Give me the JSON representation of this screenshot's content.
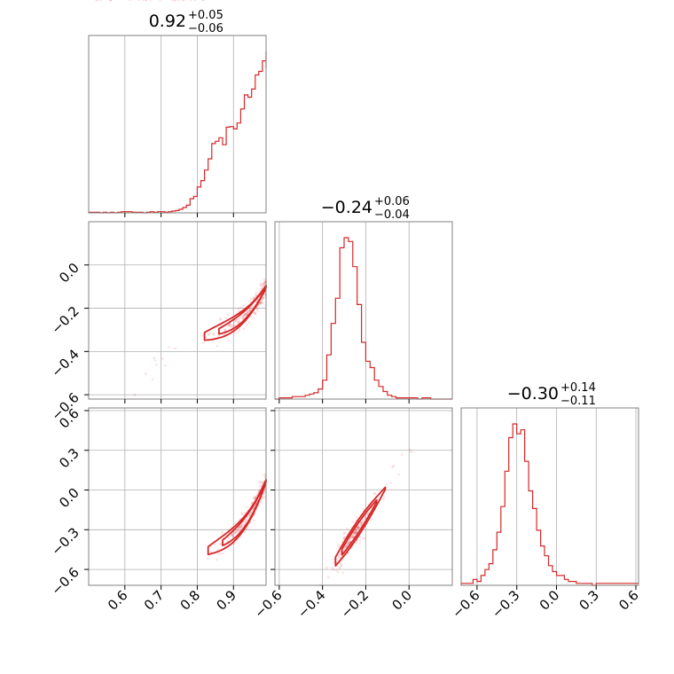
{
  "colors": {
    "series": "#d62728",
    "grid": "#b0b0b0",
    "frame": "#808080"
  },
  "chart_data": {
    "type": "corner",
    "parameters": [
      {
        "median": "0.92",
        "upper": "+0.05",
        "lower": "−0.06"
      },
      {
        "median": "−0.24",
        "upper": "+0.06",
        "lower": "−0.04"
      },
      {
        "median": "−0.30",
        "upper": "+0.14",
        "lower": "−0.11"
      }
    ],
    "ranges": [
      [
        0.5,
        0.99
      ],
      [
        -0.62,
        0.2
      ],
      [
        -0.72,
        0.62
      ]
    ],
    "ticks": [
      {
        "values": [
          0.6,
          0.7,
          0.8,
          0.9
        ],
        "labels": [
          "0.6",
          "0.7",
          "0.8",
          "0.9"
        ]
      },
      {
        "values": [
          -0.6,
          -0.4,
          -0.2,
          0.0
        ],
        "labels": [
          "−0.6",
          "−0.4",
          "−0.2",
          "0.0"
        ]
      },
      {
        "values": [
          -0.6,
          -0.3,
          0.0,
          0.3,
          0.6
        ],
        "labels": [
          "−0.6",
          "−0.3",
          "0.0",
          "0.3",
          "0.6"
        ]
      }
    ],
    "grid": true,
    "histograms": [
      {
        "parameter": 0,
        "bin_start": 0.5,
        "bin_width": 0.01,
        "counts": [
          1,
          1,
          1,
          0,
          1,
          0,
          1,
          0,
          1,
          2,
          2,
          2,
          1,
          1,
          1,
          0,
          1,
          2,
          1,
          2,
          2,
          1,
          2,
          3,
          4,
          6,
          9,
          13,
          24,
          28,
          44,
          55,
          73,
          92,
          118,
          122,
          128,
          116,
          146,
          147,
          143,
          153,
          177,
          201,
          197,
          211,
          235,
          241,
          259,
          275,
          247
        ]
      },
      {
        "parameter": 1,
        "bin_start": -0.62,
        "bin_width": 0.02,
        "counts": [
          0,
          1,
          1,
          1,
          2,
          2,
          2,
          3,
          4,
          5,
          8,
          15,
          35,
          60,
          80,
          120,
          128,
          125,
          105,
          75,
          45,
          30,
          25,
          15,
          10,
          6,
          3,
          2,
          1,
          1,
          1,
          1,
          1,
          0,
          1,
          1,
          0,
          0,
          0,
          0,
          0
        ]
      },
      {
        "parameter": 2,
        "bin_start": -0.72,
        "bin_width": 0.03,
        "counts": [
          1,
          1,
          1,
          3,
          2,
          5,
          8,
          11,
          18,
          27,
          40,
          58,
          75,
          82,
          77,
          79,
          63,
          48,
          39,
          28,
          20,
          15,
          10,
          7,
          5,
          5,
          3,
          2,
          2,
          1,
          1,
          1,
          1,
          0,
          1,
          1,
          1,
          1,
          1,
          1,
          1,
          1,
          1,
          1,
          1
        ]
      }
    ],
    "scatter_panels": [
      {
        "x_param": 0,
        "y_param": 1,
        "relation": "y = -0.22 - 0.4*(1.8*(0.93-x) + 0.15*(0.95-x)^... ) curved ridge"
      },
      {
        "x_param": 0,
        "y_param": 2,
        "relation": "curved ridge rising steeply toward x = 0.99"
      },
      {
        "x_param": 1,
        "y_param": 2,
        "relation": "linear ridge y = 2.4*(x + 0.24) - 0.30"
      }
    ]
  }
}
